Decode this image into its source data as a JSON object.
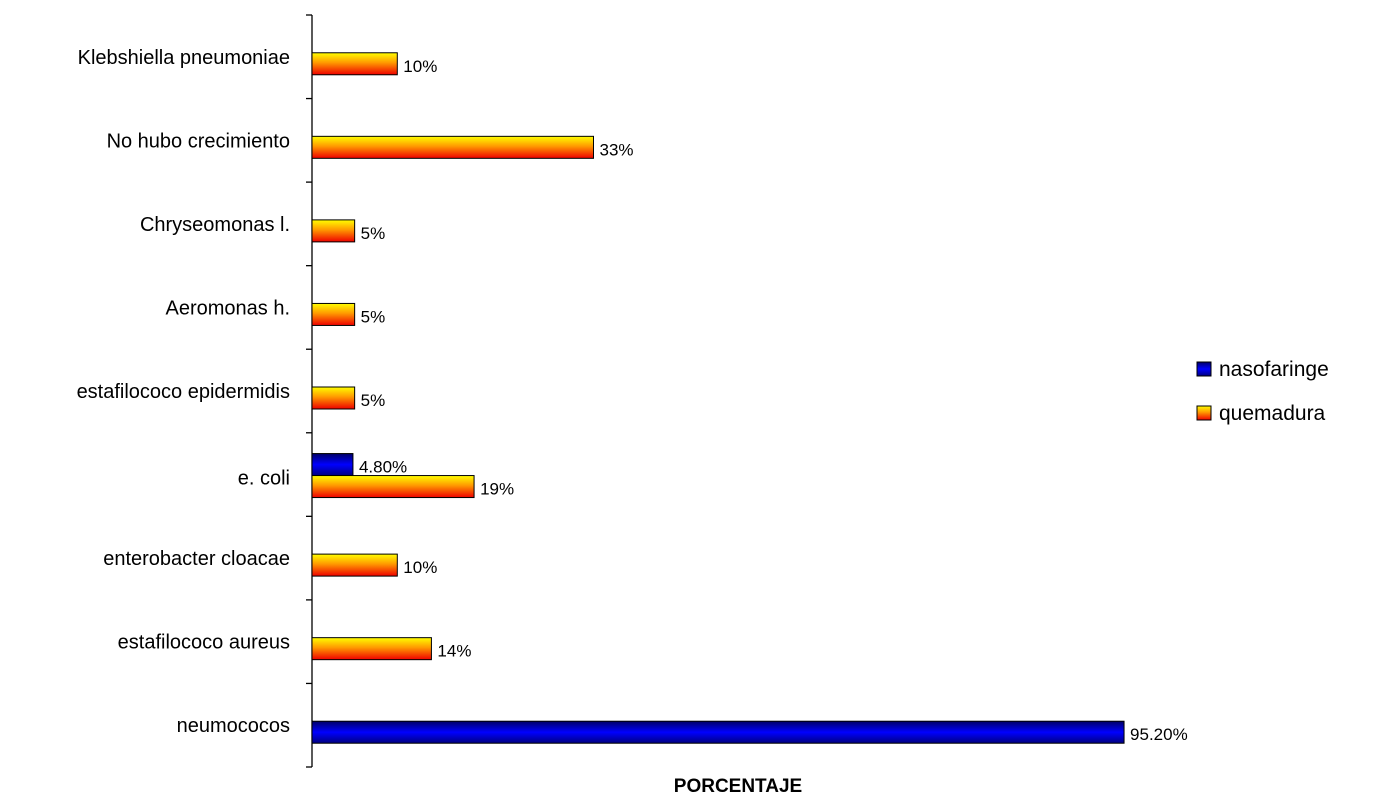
{
  "chart_data": {
    "type": "bar",
    "orientation": "horizontal",
    "categories": [
      "Klebshiella pneumoniae",
      "No hubo crecimiento",
      "Chryseomonas l.",
      "Aeromonas h.",
      "estafilococo epidermidis",
      "e. coli",
      "enterobacter cloacae",
      "estafilococo aureus",
      "neumococos"
    ],
    "series": [
      {
        "name": "nasofaringe",
        "color": "#0000ee",
        "values": [
          null,
          null,
          null,
          null,
          null,
          4.8,
          null,
          null,
          95.2
        ],
        "labels": [
          null,
          null,
          null,
          null,
          null,
          "4.80%",
          null,
          null,
          "95.20%"
        ]
      },
      {
        "name": "quemadura",
        "color": "#ff3300",
        "values": [
          10,
          33,
          5,
          5,
          5,
          19,
          10,
          14,
          null
        ],
        "labels": [
          "10%",
          "33%",
          "5%",
          "5%",
          "5%",
          "19%",
          "10%",
          "14%",
          null
        ]
      }
    ],
    "xlabel": "PORCENTAJE",
    "xlim": [
      0,
      100
    ],
    "grid": false,
    "legend_position": "right"
  }
}
